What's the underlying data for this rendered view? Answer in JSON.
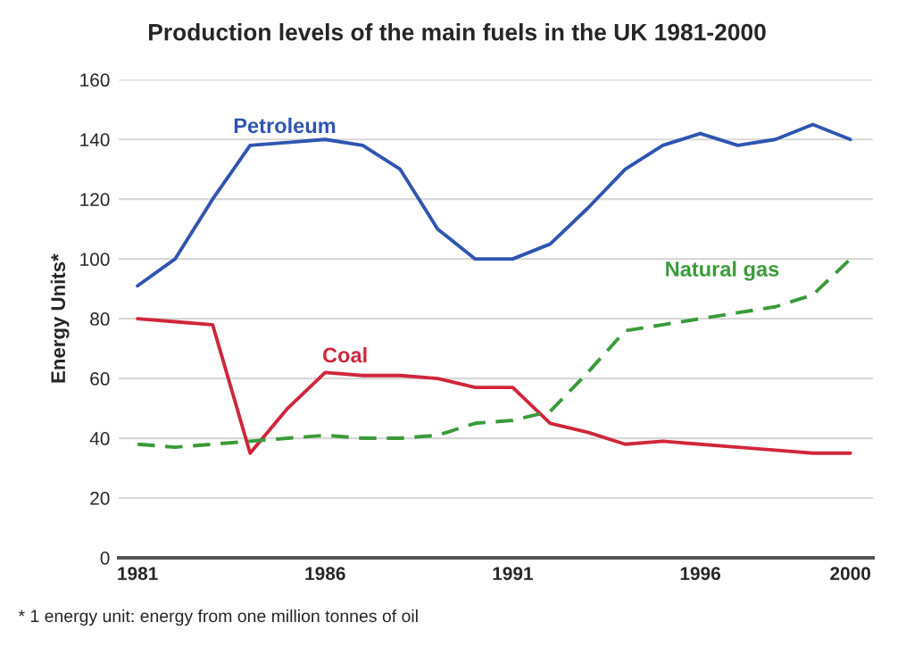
{
  "chart_data": {
    "type": "line",
    "title": "Production levels of the main fuels in the UK 1981-2000",
    "ylabel": "Energy Units*",
    "x": [
      1981,
      1982,
      1983,
      1984,
      1985,
      1986,
      1987,
      1988,
      1989,
      1990,
      1991,
      1992,
      1993,
      1994,
      1995,
      1996,
      1997,
      1998,
      1999,
      2000
    ],
    "series": [
      {
        "name": "Petroleum",
        "color": "#2f55b0",
        "line_style": "solid",
        "values": [
          91,
          100,
          120,
          138,
          139,
          140,
          138,
          130,
          110,
          100,
          100,
          105,
          117,
          130,
          138,
          142,
          138,
          140,
          145,
          140
        ]
      },
      {
        "name": "Coal",
        "color": "#d0263a",
        "line_style": "solid",
        "values": [
          80,
          79,
          78,
          35,
          50,
          62,
          61,
          61,
          60,
          57,
          57,
          45,
          42,
          38,
          39,
          38,
          37,
          36,
          35,
          35
        ]
      },
      {
        "name": "Natural gas",
        "color": "#3a9a3a",
        "line_style": "dashed",
        "values": [
          38,
          37,
          38,
          39,
          40,
          41,
          40,
          40,
          41,
          45,
          46,
          49,
          62,
          76,
          78,
          80,
          82,
          84,
          88,
          100
        ]
      }
    ],
    "xlim": [
      1980.5,
      2000.6
    ],
    "xticks": [
      1981,
      1986,
      1991,
      1996,
      2000
    ],
    "ylim": [
      0,
      160
    ],
    "yticks": [
      0,
      20,
      40,
      60,
      80,
      100,
      120,
      140,
      160
    ],
    "grid": "y",
    "legend": false,
    "marker": "none",
    "annotations": [
      "* 1 energy unit: energy from one million tonnes of oil"
    ]
  }
}
